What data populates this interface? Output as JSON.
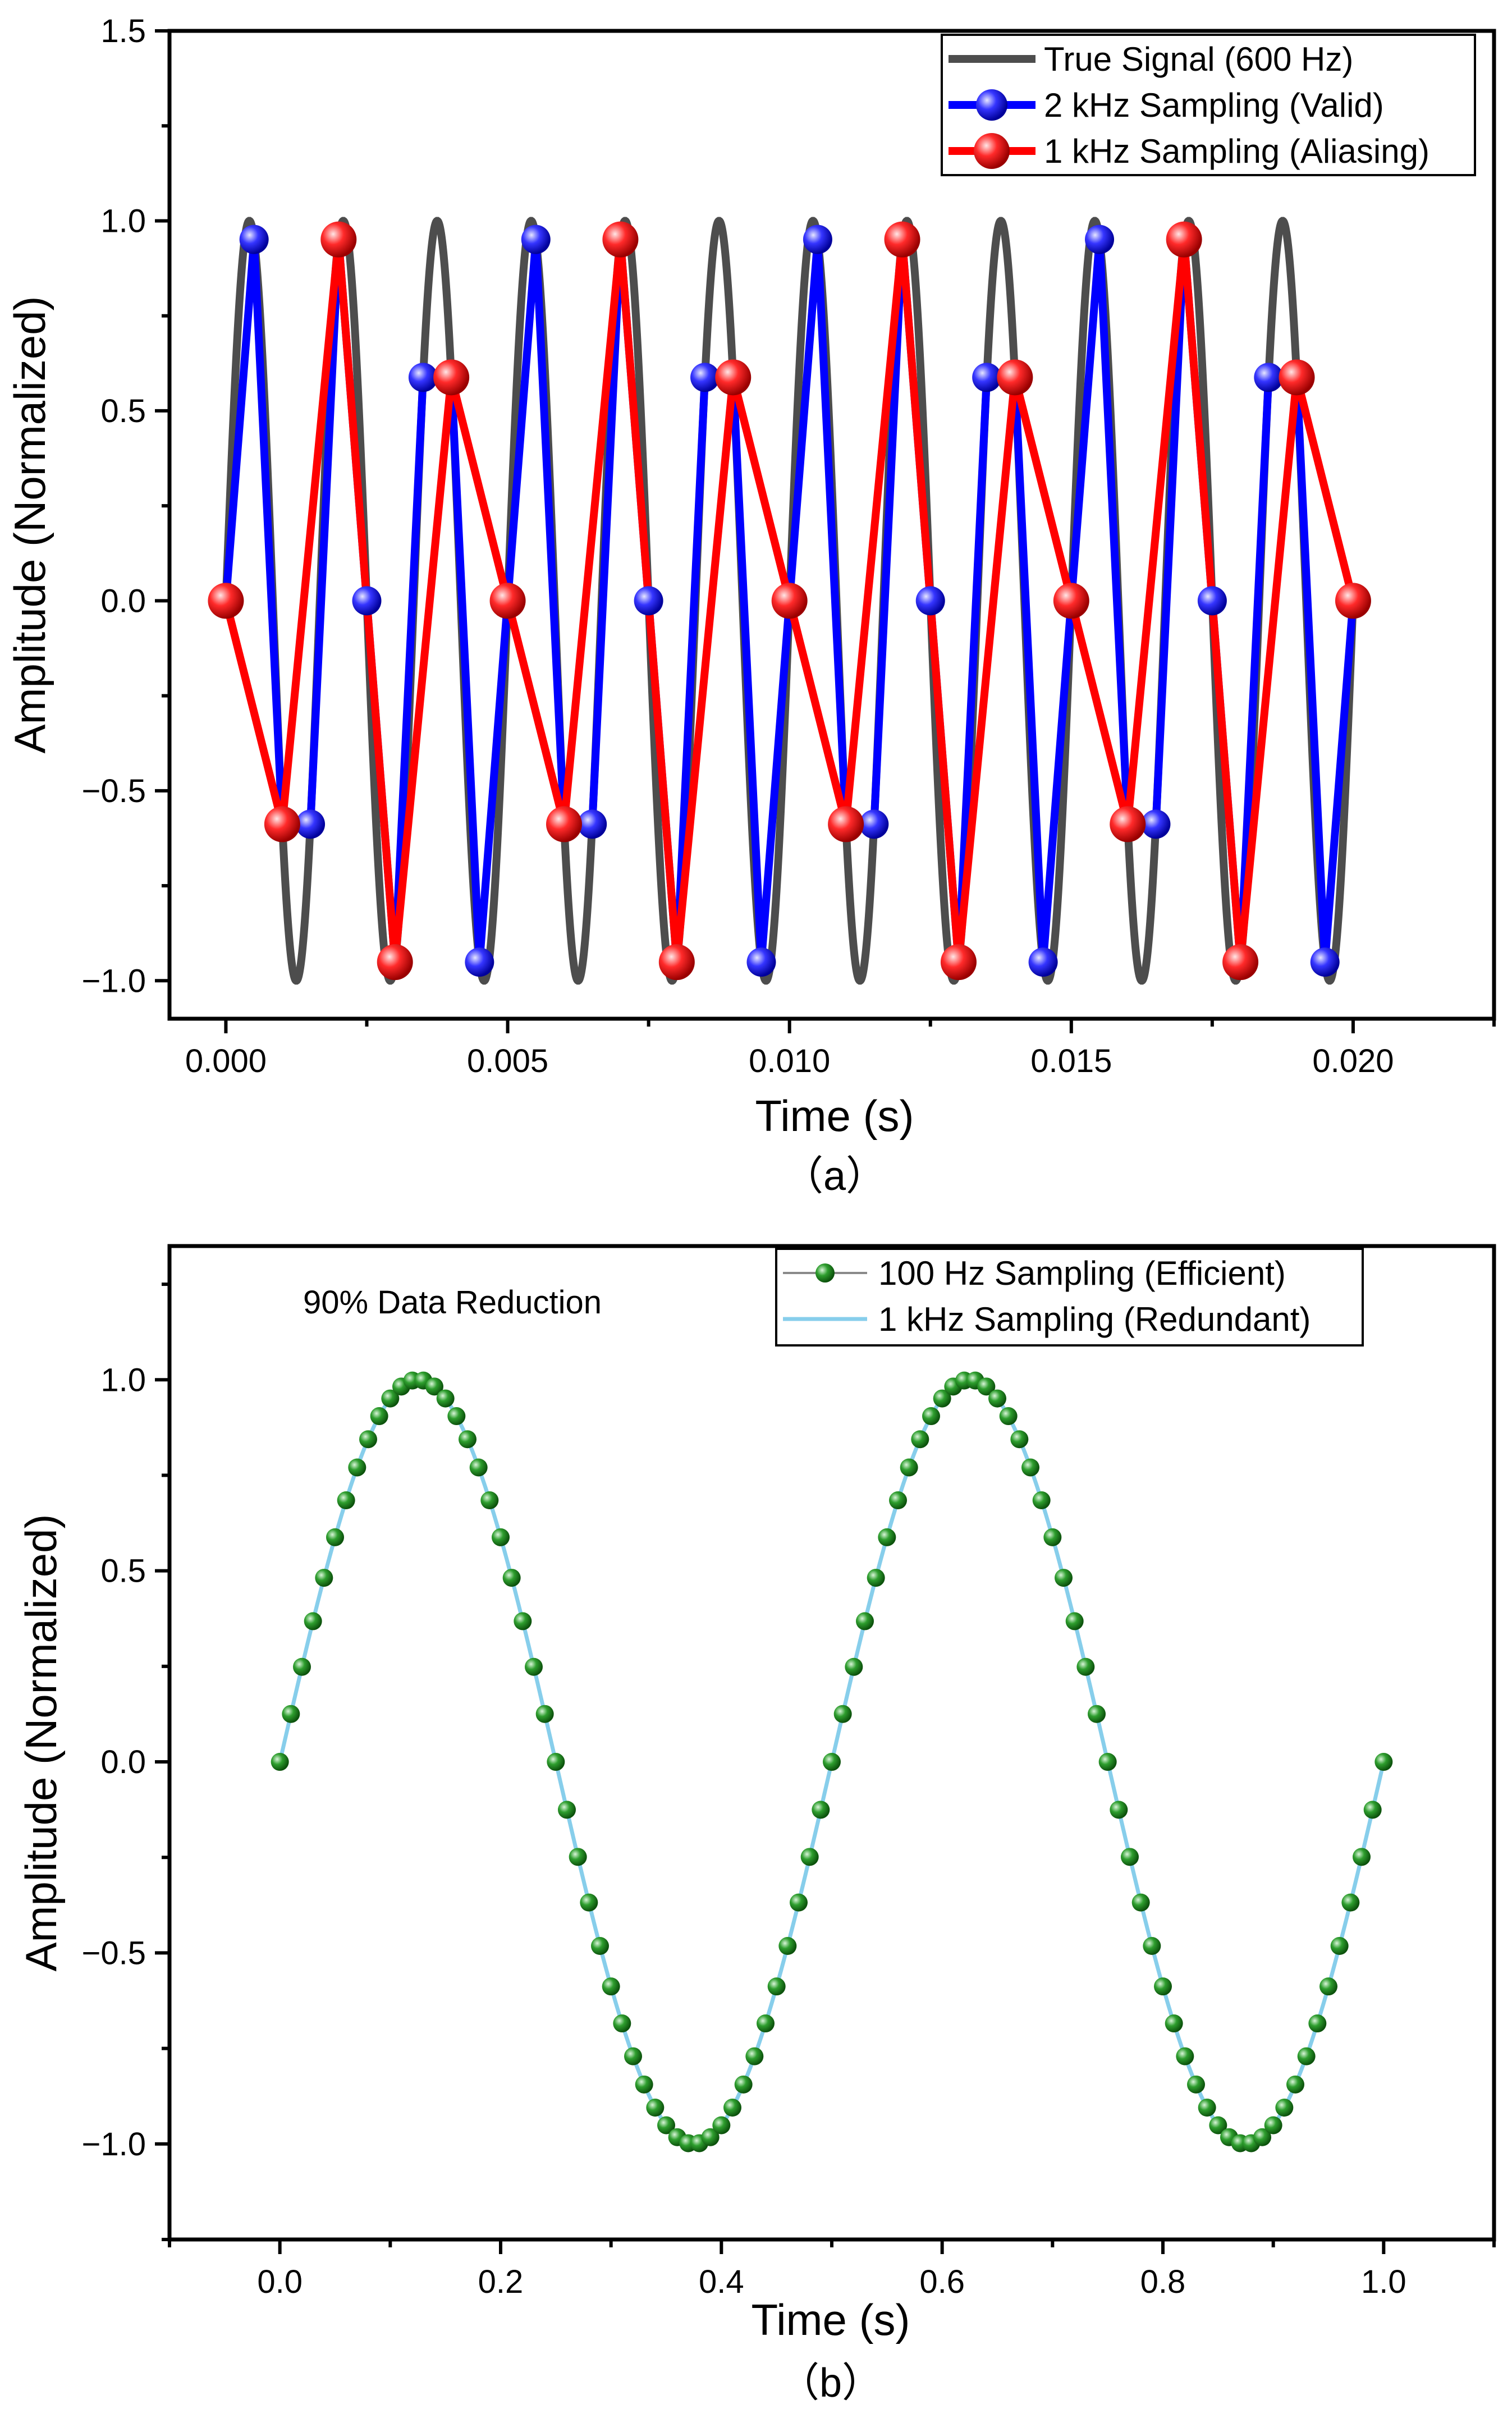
{
  "colors": {
    "true_signal": "#4d4d4d",
    "valid": "#0000ff",
    "aliasing": "#ff0000",
    "efficient": "#1a8a1a",
    "redundant": "#87ceeb",
    "axis": "#000000"
  },
  "chart_data": [
    {
      "type": "line",
      "caption": "（a）",
      "xlabel": "Time (s)",
      "ylabel": "Amplitude (Normalized)",
      "xlim": [
        -0.001,
        0.0225
      ],
      "ylim": [
        -1.1,
        1.5
      ],
      "xticks": [
        0.0,
        0.005,
        0.01,
        0.015,
        0.02
      ],
      "xtick_labels": [
        "0.000",
        "0.005",
        "0.010",
        "0.015",
        "0.020"
      ],
      "yticks": [
        -1.0,
        -0.5,
        0.0,
        0.5,
        1.0,
        1.5
      ],
      "ytick_labels": [
        "−1.0",
        "−0.5",
        "0.0",
        "0.5",
        "1.0",
        "1.5"
      ],
      "grid": false,
      "legend_position": "top-right",
      "series": [
        {
          "name": "True Signal (600 Hz)",
          "kind": "continuous",
          "frequency_hz": 600,
          "x_range": [
            0.0,
            0.02
          ],
          "color": "#4d4d4d"
        },
        {
          "name": "2 kHz Sampling (Valid)",
          "kind": "sampled",
          "color": "#0000ff",
          "x": [
            0.0,
            0.0005,
            0.001,
            0.0015,
            0.002,
            0.0025,
            0.003,
            0.0035,
            0.004,
            0.0045,
            0.005,
            0.0055,
            0.006,
            0.0065,
            0.007,
            0.0075,
            0.008,
            0.0085,
            0.009,
            0.0095,
            0.01,
            0.0105,
            0.011,
            0.0115,
            0.012,
            0.0125,
            0.013,
            0.0135,
            0.014,
            0.0145,
            0.015,
            0.0155,
            0.016,
            0.0165,
            0.017,
            0.0175,
            0.018,
            0.0185,
            0.019,
            0.0195,
            0.02
          ],
          "y": [
            0.0,
            0.951,
            -0.588,
            -0.588,
            0.951,
            0.0,
            -0.951,
            0.588,
            0.588,
            -0.951,
            0.0,
            0.951,
            -0.588,
            -0.588,
            0.951,
            0.0,
            -0.951,
            0.588,
            0.588,
            -0.951,
            0.0,
            0.951,
            -0.588,
            -0.588,
            0.951,
            0.0,
            -0.951,
            0.588,
            0.588,
            -0.951,
            0.0,
            0.951,
            -0.588,
            -0.588,
            0.951,
            0.0,
            -0.951,
            0.588,
            0.588,
            -0.951,
            0.0
          ]
        },
        {
          "name": "1 kHz Sampling (Aliasing)",
          "kind": "sampled",
          "color": "#ff0000",
          "x": [
            0.0,
            0.001,
            0.002,
            0.003,
            0.004,
            0.005,
            0.006,
            0.007,
            0.008,
            0.009,
            0.01,
            0.011,
            0.012,
            0.013,
            0.014,
            0.015,
            0.016,
            0.017,
            0.018,
            0.019,
            0.02
          ],
          "y": [
            0.0,
            -0.588,
            0.951,
            -0.951,
            0.588,
            0.0,
            -0.588,
            0.951,
            -0.951,
            0.588,
            0.0,
            -0.588,
            0.951,
            -0.951,
            0.588,
            0.0,
            -0.588,
            0.951,
            -0.951,
            0.588,
            0.0
          ]
        }
      ]
    },
    {
      "type": "line",
      "caption": "（b）",
      "xlabel": "Time (s)",
      "ylabel": "Amplitude (Normalized)",
      "annotation": "90% Data Reduction",
      "xlim": [
        -0.1,
        1.1
      ],
      "ylim": [
        -1.25,
        1.35
      ],
      "xticks": [
        0.0,
        0.2,
        0.4,
        0.6,
        0.8,
        1.0
      ],
      "xtick_labels": [
        "0.0",
        "0.2",
        "0.4",
        "0.6",
        "0.8",
        "1.0"
      ],
      "yticks": [
        -1.0,
        -0.5,
        0.0,
        0.5,
        1.0
      ],
      "ytick_labels": [
        "−1.0",
        "−0.5",
        "0.0",
        "0.5",
        "1.0"
      ],
      "grid": false,
      "legend_position": "top-right",
      "series": [
        {
          "name": "100 Hz Sampling (Efficient)",
          "kind": "sampled",
          "signal_frequency_hz": 2,
          "sample_rate_hz": 100,
          "x_range": [
            0.0,
            1.0
          ],
          "color": "#1a8a1a"
        },
        {
          "name": "1 kHz Sampling (Redundant)",
          "kind": "continuous",
          "signal_frequency_hz": 2,
          "sample_rate_hz": 1000,
          "x_range": [
            0.0,
            1.0
          ],
          "color": "#87ceeb"
        }
      ]
    }
  ]
}
